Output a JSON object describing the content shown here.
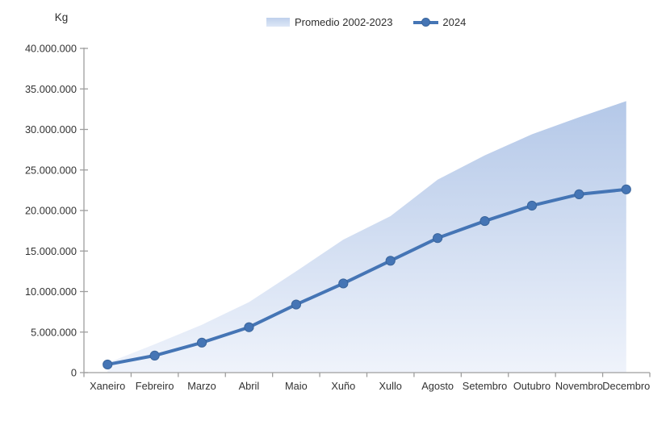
{
  "unit_label": "Kg",
  "colors": {
    "line": "#4575b5",
    "line_edge": "#3a659c",
    "area_top": "#b4c8e8",
    "area_bottom": "#eff3fb",
    "axis": "#9e9e9e",
    "text": "#333333",
    "background": "#ffffff"
  },
  "legend": {
    "promedio_label": "Promedio 2002-2023",
    "year_label": "2024"
  },
  "chart_data": {
    "type": "area",
    "title": "",
    "xlabel": "",
    "ylabel": "Kg",
    "grid": false,
    "legend_position": "top-center",
    "ylim": [
      0,
      40000000
    ],
    "y_tick_step": 5000000,
    "y_tick_labels": [
      "0",
      "5.000.000",
      "10.000.000",
      "15.000.000",
      "20.000.000",
      "25.000.000",
      "30.000.000",
      "35.000.000",
      "40.000.000"
    ],
    "categories": [
      "Xaneiro",
      "Febreiro",
      "Marzo",
      "Abril",
      "Maio",
      "Xuño",
      "Xullo",
      "Agosto",
      "Setembro",
      "Outubro",
      "Novembro",
      "Decembro"
    ],
    "series": [
      {
        "name": "Promedio 2002-2023",
        "render": "area",
        "values": [
          1200000,
          3500000,
          5900000,
          8700000,
          12500000,
          16400000,
          19300000,
          23800000,
          26800000,
          29400000,
          31500000,
          33500000
        ]
      },
      {
        "name": "2024",
        "render": "line-with-markers",
        "values": [
          1000000,
          2100000,
          3700000,
          5600000,
          8400000,
          11000000,
          13800000,
          16600000,
          18700000,
          20600000,
          22000000,
          22600000
        ]
      }
    ]
  }
}
